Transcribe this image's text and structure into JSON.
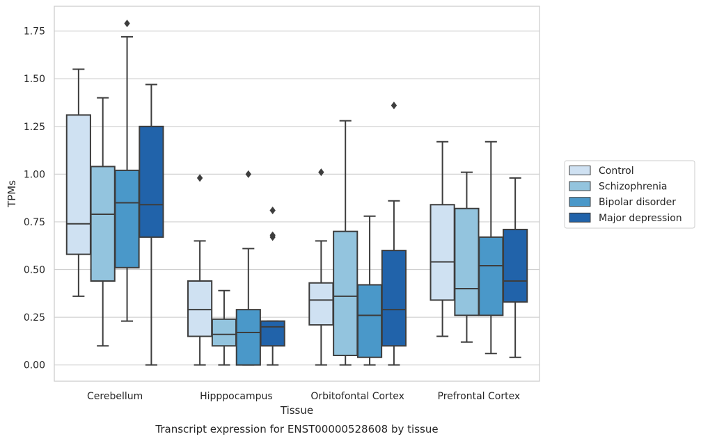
{
  "chart_data": {
    "type": "boxplot",
    "title": "Transcript expression for ENST00000528608 by tissue",
    "xlabel": "Tissue",
    "ylabel": "TPMs",
    "ylim": [
      -0.085,
      1.88
    ],
    "yticks": [
      "0.00",
      "0.25",
      "0.50",
      "0.75",
      "1.00",
      "1.25",
      "1.50",
      "1.75"
    ],
    "ytick_values": [
      0,
      0.25,
      0.5,
      0.75,
      1.0,
      1.25,
      1.5,
      1.75
    ],
    "grid": "horizontal",
    "legend_position": "right",
    "categories": [
      "Cerebellum",
      "Hipppocampus",
      "Orbitofontal Cortex",
      "Prefrontal Cortex"
    ],
    "series": [
      {
        "name": "Control",
        "color": "#cfe1f2",
        "boxes": [
          {
            "whislo": 0.36,
            "q1": 0.58,
            "med": 0.74,
            "q3": 1.31,
            "whishi": 1.55,
            "fliers": []
          },
          {
            "whislo": 0.0,
            "q1": 0.15,
            "med": 0.29,
            "q3": 0.44,
            "whishi": 0.65,
            "fliers": [
              0.98
            ]
          },
          {
            "whislo": 0.0,
            "q1": 0.21,
            "med": 0.34,
            "q3": 0.43,
            "whishi": 0.65,
            "fliers": [
              1.01
            ]
          },
          {
            "whislo": 0.15,
            "q1": 0.34,
            "med": 0.54,
            "q3": 0.84,
            "whishi": 1.17,
            "fliers": []
          }
        ]
      },
      {
        "name": "Schizophrenia",
        "color": "#93c4de",
        "boxes": [
          {
            "whislo": 0.1,
            "q1": 0.44,
            "med": 0.79,
            "q3": 1.04,
            "whishi": 1.4,
            "fliers": []
          },
          {
            "whislo": 0.0,
            "q1": 0.1,
            "med": 0.16,
            "q3": 0.24,
            "whishi": 0.39,
            "fliers": []
          },
          {
            "whislo": 0.0,
            "q1": 0.05,
            "med": 0.36,
            "q3": 0.7,
            "whishi": 1.28,
            "fliers": []
          },
          {
            "whislo": 0.12,
            "q1": 0.26,
            "med": 0.4,
            "q3": 0.82,
            "whishi": 1.01,
            "fliers": []
          }
        ]
      },
      {
        "name": "Bipolar disorder",
        "color": "#4a98c9",
        "boxes": [
          {
            "whislo": 0.23,
            "q1": 0.51,
            "med": 0.85,
            "q3": 1.02,
            "whishi": 1.72,
            "fliers": [
              1.79
            ]
          },
          {
            "whislo": 0.0,
            "q1": 0.0,
            "med": 0.17,
            "q3": 0.29,
            "whishi": 0.61,
            "fliers": [
              1.0
            ]
          },
          {
            "whislo": 0.0,
            "q1": 0.04,
            "med": 0.26,
            "q3": 0.42,
            "whishi": 0.78,
            "fliers": []
          },
          {
            "whislo": 0.06,
            "q1": 0.26,
            "med": 0.52,
            "q3": 0.67,
            "whishi": 1.17,
            "fliers": []
          }
        ]
      },
      {
        "name": "Major depression",
        "color": "#2163aa",
        "boxes": [
          {
            "whislo": 0.0,
            "q1": 0.67,
            "med": 0.84,
            "q3": 1.25,
            "whishi": 1.47,
            "fliers": []
          },
          {
            "whislo": 0.0,
            "q1": 0.1,
            "med": 0.2,
            "q3": 0.23,
            "whishi": 0.23,
            "fliers": [
              0.81,
              0.68,
              0.67
            ]
          },
          {
            "whislo": 0.0,
            "q1": 0.1,
            "med": 0.29,
            "q3": 0.6,
            "whishi": 0.86,
            "fliers": [
              1.36
            ]
          },
          {
            "whislo": 0.04,
            "q1": 0.33,
            "med": 0.44,
            "q3": 0.71,
            "whishi": 0.98,
            "fliers": []
          }
        ]
      }
    ]
  }
}
